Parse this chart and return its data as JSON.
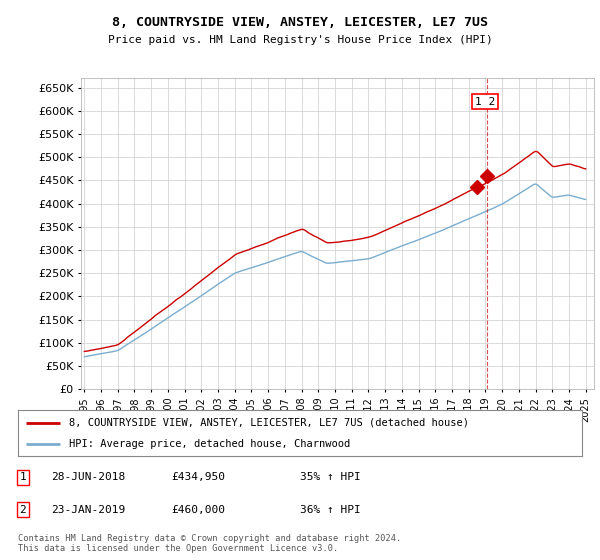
{
  "title": "8, COUNTRYSIDE VIEW, ANSTEY, LEICESTER, LE7 7US",
  "subtitle": "Price paid vs. HM Land Registry's House Price Index (HPI)",
  "ylabel_ticks": [
    0,
    50000,
    100000,
    150000,
    200000,
    250000,
    300000,
    350000,
    400000,
    450000,
    500000,
    550000,
    600000,
    650000
  ],
  "xlim": [
    1994.8,
    2025.5
  ],
  "ylim": [
    0,
    670000
  ],
  "sale1_date_x": 2018.49,
  "sale1_price": 434950,
  "sale2_date_x": 2019.07,
  "sale2_price": 460000,
  "legend_line1": "8, COUNTRYSIDE VIEW, ANSTEY, LEICESTER, LE7 7US (detached house)",
  "legend_line2": "HPI: Average price, detached house, Charnwood",
  "table_rows": [
    {
      "num": "1",
      "date": "28-JUN-2018",
      "price": "£434,950",
      "hpi": "35% ↑ HPI"
    },
    {
      "num": "2",
      "date": "23-JAN-2019",
      "price": "£460,000",
      "hpi": "36% ↑ HPI"
    }
  ],
  "footer": "Contains HM Land Registry data © Crown copyright and database right 2024.\nThis data is licensed under the Open Government Licence v3.0.",
  "red_color": "#cc0000",
  "blue_color": "#7aadcf",
  "grid_color": "#cccccc",
  "background_color": "#ffffff"
}
